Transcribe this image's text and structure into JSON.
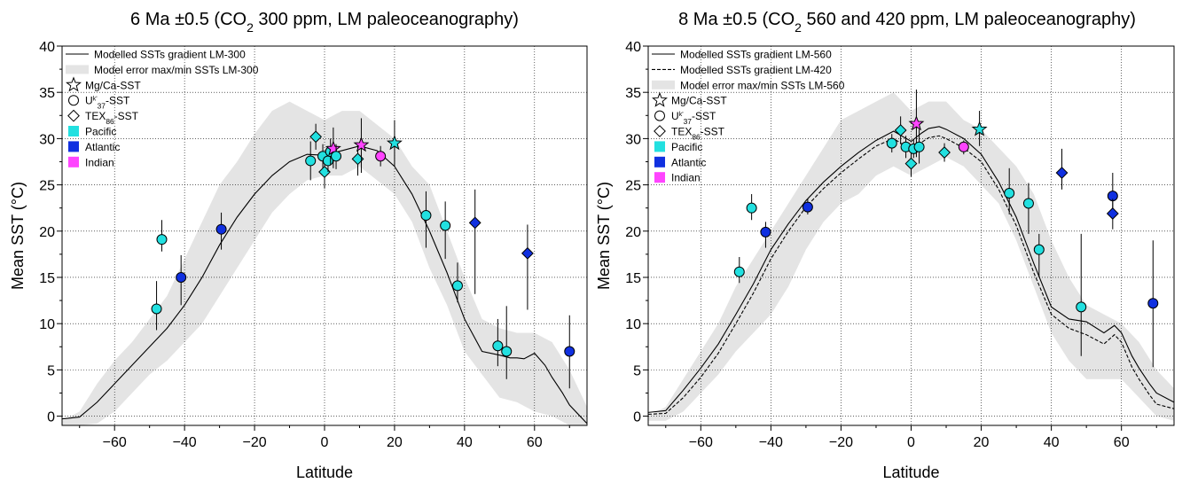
{
  "chart_data": [
    {
      "type": "line",
      "title": "6 Ma ±0.5 (CO2 300 ppm, LM paleoceanography)",
      "title_parts": {
        "pre": "6 Ma ±0.5 (CO",
        "sub": "2",
        "post": " 300 ppm, LM paleoceanography)"
      },
      "xlabel": "Latitude",
      "ylabel": "Mean SST (°C)",
      "xlim": [
        -75,
        75
      ],
      "ylim": [
        -1,
        40
      ],
      "xticks": [
        -60,
        -40,
        -20,
        0,
        20,
        40,
        60
      ],
      "yticks": [
        0,
        5,
        10,
        15,
        20,
        25,
        30,
        35,
        40
      ],
      "grid": true,
      "legend_position": "top-left",
      "colors": {
        "Pacific": "#22e0e0",
        "Atlantic": "#1030e0",
        "Indian": "#ff44ff",
        "band": "#e4e4e4"
      },
      "legend": [
        {
          "symbol": "line-solid",
          "label": "Modelled SSTs gradient LM-300"
        },
        {
          "symbol": "band",
          "label": "Model error max/min SSTs LM-300"
        },
        {
          "symbol": "star",
          "label": "Mg/Ca-SST"
        },
        {
          "symbol": "circle",
          "label": "U",
          "sup": "k'",
          "sub": "37",
          "suffix": "-SST"
        },
        {
          "symbol": "diamond",
          "label": "TEX",
          "sub": "86",
          "suffix": "-SST"
        },
        {
          "symbol": "swatch",
          "label": "Pacific",
          "color": "#22e0e0"
        },
        {
          "symbol": "swatch",
          "label": "Atlantic",
          "color": "#1030e0"
        },
        {
          "symbol": "swatch",
          "label": "Indian",
          "color": "#ff44ff"
        }
      ],
      "series": [
        {
          "name": "Modelled SSTs gradient LM-300",
          "style": "solid",
          "x": [
            -75,
            -70,
            -65,
            -60,
            -55,
            -50,
            -45,
            -40,
            -35,
            -30,
            -25,
            -20,
            -15,
            -10,
            -5,
            0,
            5,
            10,
            15,
            20,
            25,
            30,
            35,
            40,
            45,
            50,
            53,
            55,
            57,
            60,
            63,
            65,
            68,
            70,
            73,
            75
          ],
          "y": [
            -0.3,
            -0.1,
            1.5,
            3.5,
            5.5,
            7.5,
            9.5,
            12,
            15,
            18.5,
            21.5,
            24,
            26,
            27.5,
            28.3,
            28.2,
            28.7,
            29.2,
            28.7,
            27,
            24,
            20,
            15.5,
            10.5,
            7,
            6.6,
            6.3,
            6.3,
            6.2,
            6.8,
            5.5,
            4.2,
            2.5,
            1.2,
            0,
            -0.8
          ]
        }
      ],
      "band": {
        "x": [
          -75,
          -70,
          -65,
          -60,
          -55,
          -50,
          -45,
          -40,
          -35,
          -30,
          -25,
          -20,
          -15,
          -10,
          -5,
          0,
          5,
          10,
          15,
          20,
          25,
          30,
          35,
          40,
          45,
          50,
          55,
          60,
          65,
          70,
          75
        ],
        "upper": [
          -0.5,
          0.5,
          3.5,
          6,
          8,
          10.5,
          13,
          17,
          21,
          25,
          27.5,
          30.5,
          33,
          34,
          33,
          32,
          33,
          33,
          31.5,
          30,
          27,
          25,
          20,
          15,
          10.5,
          9.5,
          9,
          9,
          8,
          5,
          1
        ],
        "lower": [
          -1,
          -1,
          -0.8,
          0.5,
          2.5,
          4.5,
          6,
          8,
          10,
          13,
          16,
          19,
          22,
          24,
          25.5,
          26,
          26,
          27,
          25.5,
          24,
          21,
          16,
          12,
          7,
          4.5,
          2,
          1.5,
          0.5,
          0,
          -1,
          -1
        ]
      },
      "points": [
        {
          "x": -48,
          "y": 11.6,
          "lo": 9.3,
          "hi": 14.6,
          "marker": "circle",
          "ocean": "Pacific"
        },
        {
          "x": -46.5,
          "y": 19.1,
          "lo": 17.8,
          "hi": 21.2,
          "marker": "circle",
          "ocean": "Pacific"
        },
        {
          "x": -41,
          "y": 15.0,
          "lo": 12.0,
          "hi": 17.4,
          "marker": "circle",
          "ocean": "Atlantic"
        },
        {
          "x": -29.5,
          "y": 20.2,
          "lo": 18.0,
          "hi": 22.0,
          "marker": "circle",
          "ocean": "Atlantic"
        },
        {
          "x": -4,
          "y": 27.6,
          "lo": 25.5,
          "hi": 29.7,
          "marker": "circle",
          "ocean": "Pacific"
        },
        {
          "x": -2.5,
          "y": 30.2,
          "lo": 28.8,
          "hi": 31.6,
          "marker": "diamond",
          "ocean": "Pacific"
        },
        {
          "x": -0.5,
          "y": 28.1,
          "lo": 26.8,
          "hi": 29.4,
          "marker": "circle",
          "ocean": "Pacific"
        },
        {
          "x": 0,
          "y": 26.4,
          "lo": 24.6,
          "hi": 28.0,
          "marker": "diamond",
          "ocean": "Pacific"
        },
        {
          "x": 1,
          "y": 27.6,
          "lo": 26.4,
          "hi": 29.2,
          "marker": "circle",
          "ocean": "Pacific"
        },
        {
          "x": 1.7,
          "y": 28.6,
          "lo": 27.2,
          "hi": 30.0,
          "marker": "circle",
          "ocean": "Pacific"
        },
        {
          "x": 2.5,
          "y": 28.9,
          "lo": 26.8,
          "hi": 31.2,
          "marker": "star",
          "ocean": "Indian"
        },
        {
          "x": 3.3,
          "y": 28.1,
          "lo": 26.7,
          "hi": 29.4,
          "marker": "circle",
          "ocean": "Pacific"
        },
        {
          "x": 9.5,
          "y": 27.8,
          "lo": 26.0,
          "hi": 29.5,
          "marker": "diamond",
          "ocean": "Pacific"
        },
        {
          "x": 10.5,
          "y": 29.3,
          "lo": 26.3,
          "hi": 32.2,
          "marker": "star",
          "ocean": "Indian"
        },
        {
          "x": 16,
          "y": 28.1,
          "lo": 27.0,
          "hi": 29.2,
          "marker": "circle",
          "ocean": "Indian"
        },
        {
          "x": 20,
          "y": 29.5,
          "lo": 27.0,
          "hi": 32.0,
          "marker": "star",
          "ocean": "Pacific"
        },
        {
          "x": 29,
          "y": 21.7,
          "lo": 18.2,
          "hi": 24.3,
          "marker": "circle",
          "ocean": "Pacific"
        },
        {
          "x": 34.5,
          "y": 20.6,
          "lo": 17.0,
          "hi": 23.2,
          "marker": "circle",
          "ocean": "Pacific"
        },
        {
          "x": 38,
          "y": 14.1,
          "lo": 12.3,
          "hi": 16.6,
          "marker": "circle",
          "ocean": "Pacific"
        },
        {
          "x": 43,
          "y": 20.9,
          "lo": 13.2,
          "hi": 24.5,
          "marker": "diamond",
          "ocean": "Atlantic"
        },
        {
          "x": 49.5,
          "y": 7.6,
          "lo": 5.4,
          "hi": 10.5,
          "marker": "circle",
          "ocean": "Pacific"
        },
        {
          "x": 52,
          "y": 7.0,
          "lo": 4.0,
          "hi": 11.9,
          "marker": "circle",
          "ocean": "Pacific"
        },
        {
          "x": 58,
          "y": 17.6,
          "lo": 11.5,
          "hi": 20.7,
          "marker": "diamond",
          "ocean": "Atlantic"
        },
        {
          "x": 70,
          "y": 7.0,
          "lo": 3.0,
          "hi": 10.9,
          "marker": "circle",
          "ocean": "Atlantic"
        }
      ]
    },
    {
      "type": "line",
      "title": "8 Ma ±0.5 (CO2 560 and 420 ppm, LM paleoceanography)",
      "title_parts": {
        "pre": "8 Ma ±0.5 (CO",
        "sub": "2",
        "post": " 560 and 420 ppm, LM paleoceanography)"
      },
      "xlabel": "Latitude",
      "ylabel": "Mean SST (°C)",
      "xlim": [
        -75,
        75
      ],
      "ylim": [
        -1,
        40
      ],
      "xticks": [
        -60,
        -40,
        -20,
        0,
        20,
        40,
        60
      ],
      "yticks": [
        0,
        5,
        10,
        15,
        20,
        25,
        30,
        35,
        40
      ],
      "grid": true,
      "legend_position": "top-left",
      "colors": {
        "Pacific": "#22e0e0",
        "Atlantic": "#1030e0",
        "Indian": "#ff44ff",
        "band": "#e4e4e4"
      },
      "legend": [
        {
          "symbol": "line-solid",
          "label": "Modelled SSTs gradient LM-560"
        },
        {
          "symbol": "line-dashed",
          "label": "Modelled SSTs gradient LM-420"
        },
        {
          "symbol": "band",
          "label": "Model error max/min SSTs LM-560"
        },
        {
          "symbol": "star",
          "label": "Mg/Ca-SST"
        },
        {
          "symbol": "circle",
          "label": "U",
          "sup": "k'",
          "sub": "37",
          "suffix": "-SST"
        },
        {
          "symbol": "diamond",
          "label": "TEX",
          "sub": "86",
          "suffix": "-SST"
        },
        {
          "symbol": "swatch",
          "label": "Pacific",
          "color": "#22e0e0"
        },
        {
          "symbol": "swatch",
          "label": "Atlantic",
          "color": "#1030e0"
        },
        {
          "symbol": "swatch",
          "label": "Indian",
          "color": "#ff44ff"
        }
      ],
      "series": [
        {
          "name": "Modelled SSTs gradient LM-560",
          "style": "solid",
          "x": [
            -75,
            -70,
            -65,
            -60,
            -55,
            -50,
            -45,
            -40,
            -35,
            -30,
            -25,
            -20,
            -15,
            -10,
            -5,
            0,
            3,
            5,
            8,
            10,
            15,
            20,
            25,
            30,
            35,
            40,
            45,
            50,
            55,
            58,
            60,
            63,
            65,
            68,
            70,
            75
          ],
          "y": [
            0.4,
            0.6,
            2.8,
            5.2,
            7.8,
            11,
            14.3,
            18,
            20.8,
            23.3,
            25.3,
            27,
            28.5,
            29.8,
            30.8,
            29.7,
            30.6,
            31.1,
            31.3,
            31.0,
            30.0,
            28.3,
            25.3,
            21.5,
            16.5,
            11.8,
            10.5,
            10.2,
            9.0,
            9.8,
            9.0,
            6.5,
            5.2,
            3.5,
            2.5,
            1.5
          ]
        },
        {
          "name": "Modelled SSTs gradient LM-420",
          "style": "dashed",
          "x": [
            -75,
            -70,
            -65,
            -60,
            -55,
            -50,
            -45,
            -40,
            -35,
            -30,
            -25,
            -20,
            -15,
            -10,
            -5,
            0,
            3,
            5,
            8,
            10,
            15,
            20,
            25,
            30,
            35,
            40,
            45,
            50,
            55,
            58,
            60,
            63,
            65,
            68,
            70,
            75
          ],
          "y": [
            0.2,
            0.3,
            2.0,
            4.2,
            6.8,
            10,
            13.3,
            17,
            20,
            22.6,
            24.6,
            26.3,
            27.8,
            29.2,
            30.0,
            28.8,
            29.6,
            30.1,
            30.3,
            30.0,
            29.0,
            27.5,
            24.5,
            20.6,
            15.5,
            11.0,
            9.5,
            8.8,
            7.8,
            8.8,
            8.0,
            5.3,
            4.0,
            2.3,
            1.3,
            0.8
          ]
        }
      ],
      "band": {
        "x": [
          -75,
          -70,
          -65,
          -60,
          -55,
          -50,
          -45,
          -40,
          -35,
          -30,
          -25,
          -20,
          -15,
          -10,
          -5,
          0,
          5,
          10,
          15,
          20,
          25,
          30,
          35,
          40,
          45,
          50,
          55,
          60,
          65,
          70,
          75
        ],
        "upper": [
          0,
          1,
          4,
          7,
          10,
          14,
          17,
          20,
          23,
          26,
          29,
          32,
          33,
          34,
          35,
          33,
          34,
          34,
          32,
          31,
          29,
          27,
          24,
          19,
          15,
          12,
          11,
          10,
          8,
          5,
          3
        ],
        "lower": [
          -0.5,
          -0.5,
          0.5,
          2.5,
          4.5,
          7,
          9,
          11,
          14,
          18,
          21,
          23,
          24,
          26,
          27,
          26,
          27,
          28,
          27,
          25,
          23,
          19,
          14,
          9,
          6,
          4,
          4,
          4,
          2,
          0,
          -0.5
        ]
      },
      "points": [
        {
          "x": -49,
          "y": 15.6,
          "lo": 14.4,
          "hi": 17.2,
          "marker": "circle",
          "ocean": "Pacific"
        },
        {
          "x": -45.5,
          "y": 22.5,
          "lo": 21.2,
          "hi": 24.0,
          "marker": "circle",
          "ocean": "Pacific"
        },
        {
          "x": -41.5,
          "y": 19.9,
          "lo": 18.2,
          "hi": 21.0,
          "marker": "circle",
          "ocean": "Atlantic"
        },
        {
          "x": -29.5,
          "y": 22.6,
          "lo": 21.8,
          "hi": 23.5,
          "marker": "circle",
          "ocean": "Atlantic"
        },
        {
          "x": -5.5,
          "y": 29.5,
          "lo": 28.5,
          "hi": 30.5,
          "marker": "circle",
          "ocean": "Pacific"
        },
        {
          "x": -3,
          "y": 30.9,
          "lo": 29.4,
          "hi": 32.4,
          "marker": "diamond",
          "ocean": "Pacific"
        },
        {
          "x": -1.5,
          "y": 29.1,
          "lo": 27.9,
          "hi": 30.3,
          "marker": "circle",
          "ocean": "Pacific"
        },
        {
          "x": 0,
          "y": 27.3,
          "lo": 25.9,
          "hi": 28.9,
          "marker": "diamond",
          "ocean": "Pacific"
        },
        {
          "x": 0.7,
          "y": 28.9,
          "lo": 27.9,
          "hi": 29.9,
          "marker": "circle",
          "ocean": "Pacific"
        },
        {
          "x": 1.5,
          "y": 31.6,
          "lo": 28.0,
          "hi": 35.3,
          "marker": "star",
          "ocean": "Indian"
        },
        {
          "x": 2.3,
          "y": 29.1,
          "lo": 27.3,
          "hi": 31.0,
          "marker": "circle",
          "ocean": "Pacific"
        },
        {
          "x": 9.5,
          "y": 28.5,
          "lo": 27.5,
          "hi": 29.5,
          "marker": "diamond",
          "ocean": "Pacific"
        },
        {
          "x": 15,
          "y": 29.1,
          "lo": 28.3,
          "hi": 29.8,
          "marker": "circle",
          "ocean": "Indian"
        },
        {
          "x": 19.5,
          "y": 31.0,
          "lo": 29.2,
          "hi": 33.0,
          "marker": "star",
          "ocean": "Pacific"
        },
        {
          "x": 28,
          "y": 24.1,
          "lo": 21.8,
          "hi": 26.8,
          "marker": "circle",
          "ocean": "Pacific"
        },
        {
          "x": 33.5,
          "y": 23.0,
          "lo": 19.7,
          "hi": 25.2,
          "marker": "circle",
          "ocean": "Pacific"
        },
        {
          "x": 36.5,
          "y": 18.0,
          "lo": 15.0,
          "hi": 19.7,
          "marker": "circle",
          "ocean": "Pacific"
        },
        {
          "x": 43,
          "y": 26.3,
          "lo": 24.5,
          "hi": 28.9,
          "marker": "diamond",
          "ocean": "Atlantic"
        },
        {
          "x": 48.5,
          "y": 11.8,
          "lo": 6.5,
          "hi": 19.7,
          "marker": "circle",
          "ocean": "Pacific"
        },
        {
          "x": 57.5,
          "y": 23.8,
          "lo": 22.0,
          "hi": 26.3,
          "marker": "circle",
          "ocean": "Atlantic"
        },
        {
          "x": 57.5,
          "y": 21.9,
          "lo": 20.2,
          "hi": 23.5,
          "marker": "diamond",
          "ocean": "Atlantic"
        },
        {
          "x": 69,
          "y": 12.2,
          "lo": 5.3,
          "hi": 19.0,
          "marker": "circle",
          "ocean": "Atlantic"
        }
      ]
    }
  ]
}
